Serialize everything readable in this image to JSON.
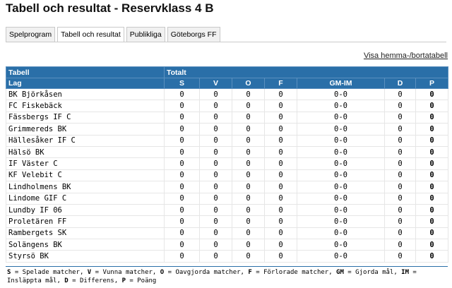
{
  "page": {
    "title": "Tabell och resultat - Reservklass 4 B"
  },
  "tabs": [
    {
      "label": "Spelprogram",
      "active": false
    },
    {
      "label": "Tabell och resultat",
      "active": true
    },
    {
      "label": "Publikliga",
      "active": false
    },
    {
      "label": "Göteborgs FF",
      "active": false
    }
  ],
  "links": {
    "home_away_table": "Visa hemma-/bortatabell"
  },
  "table": {
    "group_headers": {
      "tabell": "Tabell",
      "totalt": "Totalt"
    },
    "columns": {
      "lag": "Lag",
      "s": "S",
      "v": "V",
      "o": "O",
      "f": "F",
      "gm_im": "GM-IM",
      "d": "D",
      "p": "P"
    },
    "rows": [
      {
        "team": "BK Björkåsen",
        "s": "0",
        "v": "0",
        "o": "0",
        "f": "0",
        "gm_im": "0-0",
        "d": "0",
        "p": "0"
      },
      {
        "team": "FC Fiskebäck",
        "s": "0",
        "v": "0",
        "o": "0",
        "f": "0",
        "gm_im": "0-0",
        "d": "0",
        "p": "0"
      },
      {
        "team": "Fässbergs IF C",
        "s": "0",
        "v": "0",
        "o": "0",
        "f": "0",
        "gm_im": "0-0",
        "d": "0",
        "p": "0"
      },
      {
        "team": "Grimmereds BK",
        "s": "0",
        "v": "0",
        "o": "0",
        "f": "0",
        "gm_im": "0-0",
        "d": "0",
        "p": "0"
      },
      {
        "team": "Hällesåker IF C",
        "s": "0",
        "v": "0",
        "o": "0",
        "f": "0",
        "gm_im": "0-0",
        "d": "0",
        "p": "0"
      },
      {
        "team": "Hälsö BK",
        "s": "0",
        "v": "0",
        "o": "0",
        "f": "0",
        "gm_im": "0-0",
        "d": "0",
        "p": "0"
      },
      {
        "team": "IF Väster C",
        "s": "0",
        "v": "0",
        "o": "0",
        "f": "0",
        "gm_im": "0-0",
        "d": "0",
        "p": "0"
      },
      {
        "team": "KF Velebit C",
        "s": "0",
        "v": "0",
        "o": "0",
        "f": "0",
        "gm_im": "0-0",
        "d": "0",
        "p": "0"
      },
      {
        "team": "Lindholmens BK",
        "s": "0",
        "v": "0",
        "o": "0",
        "f": "0",
        "gm_im": "0-0",
        "d": "0",
        "p": "0"
      },
      {
        "team": "Lindome GIF C",
        "s": "0",
        "v": "0",
        "o": "0",
        "f": "0",
        "gm_im": "0-0",
        "d": "0",
        "p": "0"
      },
      {
        "team": "Lundby IF 06",
        "s": "0",
        "v": "0",
        "o": "0",
        "f": "0",
        "gm_im": "0-0",
        "d": "0",
        "p": "0"
      },
      {
        "team": "Proletären FF",
        "s": "0",
        "v": "0",
        "o": "0",
        "f": "0",
        "gm_im": "0-0",
        "d": "0",
        "p": "0"
      },
      {
        "team": "Rambergets SK",
        "s": "0",
        "v": "0",
        "o": "0",
        "f": "0",
        "gm_im": "0-0",
        "d": "0",
        "p": "0"
      },
      {
        "team": "Solängens BK",
        "s": "0",
        "v": "0",
        "o": "0",
        "f": "0",
        "gm_im": "0-0",
        "d": "0",
        "p": "0"
      },
      {
        "team": "Styrsö BK",
        "s": "0",
        "v": "0",
        "o": "0",
        "f": "0",
        "gm_im": "0-0",
        "d": "0",
        "p": "0"
      }
    ]
  },
  "legend": [
    {
      "abbr": "S",
      "text": " = Spelade matcher, "
    },
    {
      "abbr": "V",
      "text": " = Vunna matcher, "
    },
    {
      "abbr": "O",
      "text": " = Oavgjorda matcher, "
    },
    {
      "abbr": "F",
      "text": " = Förlorade matcher, "
    },
    {
      "abbr": "GM",
      "text": " = Gjorda mål, "
    },
    {
      "abbr": "IM",
      "text": " = Insläppta mål, "
    },
    {
      "abbr": "D",
      "text": " = Differens, "
    },
    {
      "abbr": "P",
      "text": " = Poäng"
    }
  ],
  "colors": {
    "header_bg": "#2a6fa8",
    "header_text": "#ffffff",
    "legend_rule": "#2a6fa8"
  }
}
